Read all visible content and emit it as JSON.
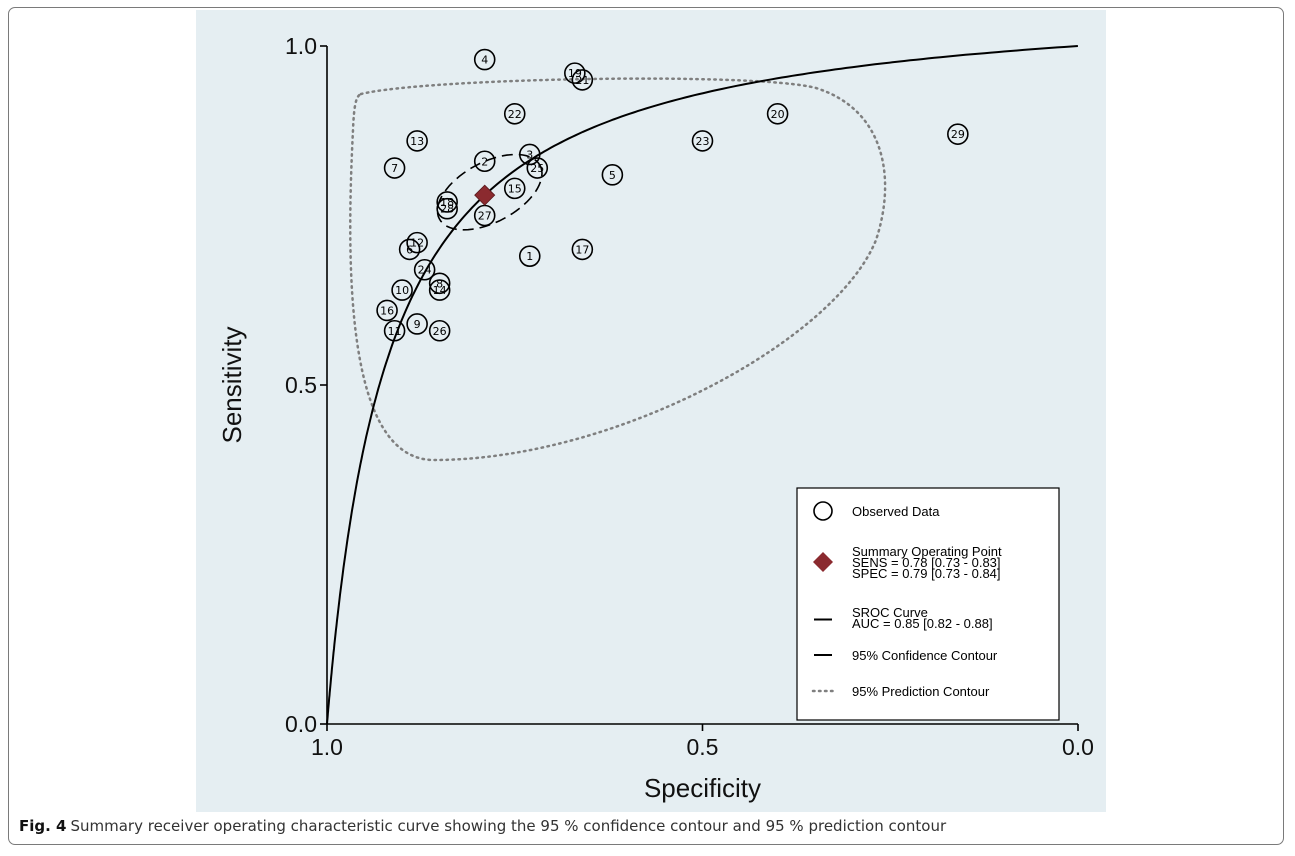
{
  "chart_data": {
    "type": "scatter",
    "xlabel": "Specificity",
    "ylabel": "Sensitivity",
    "xlim": [
      1.0,
      0.0
    ],
    "ylim": [
      0.0,
      1.0
    ],
    "x_reversed": true,
    "xticks": [
      "1.0",
      "0.5",
      "0.0"
    ],
    "yticks": [
      "0.0",
      "0.5",
      "1.0"
    ],
    "grid": false,
    "legend_position": "bottom-right",
    "colors": {
      "plot_background": "#e5eef2",
      "marker": "#000000",
      "summary_point": "#8b2a2f",
      "curve": "#000000",
      "prediction_contour": "#7f7f7f"
    },
    "observed": [
      {
        "label": "1",
        "spec": 0.73,
        "sens": 0.69
      },
      {
        "label": "2",
        "spec": 0.79,
        "sens": 0.83
      },
      {
        "label": "3",
        "spec": 0.73,
        "sens": 0.84
      },
      {
        "label": "4",
        "spec": 0.79,
        "sens": 0.98
      },
      {
        "label": "5",
        "spec": 0.62,
        "sens": 0.81
      },
      {
        "label": "6",
        "spec": 0.89,
        "sens": 0.7
      },
      {
        "label": "7",
        "spec": 0.91,
        "sens": 0.82
      },
      {
        "label": "8",
        "spec": 0.85,
        "sens": 0.65
      },
      {
        "label": "9",
        "spec": 0.88,
        "sens": 0.59
      },
      {
        "label": "10",
        "spec": 0.9,
        "sens": 0.64
      },
      {
        "label": "11",
        "spec": 0.91,
        "sens": 0.58
      },
      {
        "label": "12",
        "spec": 0.88,
        "sens": 0.71
      },
      {
        "label": "13",
        "spec": 0.88,
        "sens": 0.86
      },
      {
        "label": "14",
        "spec": 0.85,
        "sens": 0.64
      },
      {
        "label": "15",
        "spec": 0.75,
        "sens": 0.79
      },
      {
        "label": "16",
        "spec": 0.92,
        "sens": 0.61
      },
      {
        "label": "17",
        "spec": 0.66,
        "sens": 0.7
      },
      {
        "label": "18",
        "spec": 0.84,
        "sens": 0.77
      },
      {
        "label": "19",
        "spec": 0.67,
        "sens": 0.96
      },
      {
        "label": "20",
        "spec": 0.4,
        "sens": 0.9
      },
      {
        "label": "21",
        "spec": 0.66,
        "sens": 0.95
      },
      {
        "label": "22",
        "spec": 0.75,
        "sens": 0.9
      },
      {
        "label": "23",
        "spec": 0.5,
        "sens": 0.86
      },
      {
        "label": "24",
        "spec": 0.87,
        "sens": 0.67
      },
      {
        "label": "25",
        "spec": 0.72,
        "sens": 0.82
      },
      {
        "label": "26",
        "spec": 0.85,
        "sens": 0.58
      },
      {
        "label": "27",
        "spec": 0.79,
        "sens": 0.75
      },
      {
        "label": "28",
        "spec": 0.84,
        "sens": 0.76
      },
      {
        "label": "29",
        "spec": 0.16,
        "sens": 0.87
      }
    ],
    "summary_point": {
      "spec": 0.79,
      "sens": 0.78
    },
    "sroc_auc": 0.85,
    "legend": [
      {
        "key": "observed",
        "lines": [
          "Observed Data"
        ]
      },
      {
        "key": "summary",
        "lines": [
          "Summary Operating Point",
          "SENS = 0.78 [0.73 - 0.83]",
          "SPEC = 0.79 [0.73 - 0.84]"
        ]
      },
      {
        "key": "sroc",
        "lines": [
          "SROC Curve",
          "AUC = 0.85 [0.82 - 0.88]"
        ]
      },
      {
        "key": "confidence",
        "lines": [
          "95% Confidence Contour"
        ]
      },
      {
        "key": "prediction",
        "lines": [
          "95% Prediction Contour"
        ]
      }
    ]
  },
  "caption": {
    "label": "Fig. 4",
    "text": "Summary receiver operating characteristic curve showing the 95 % confidence contour and 95 % prediction contour"
  }
}
